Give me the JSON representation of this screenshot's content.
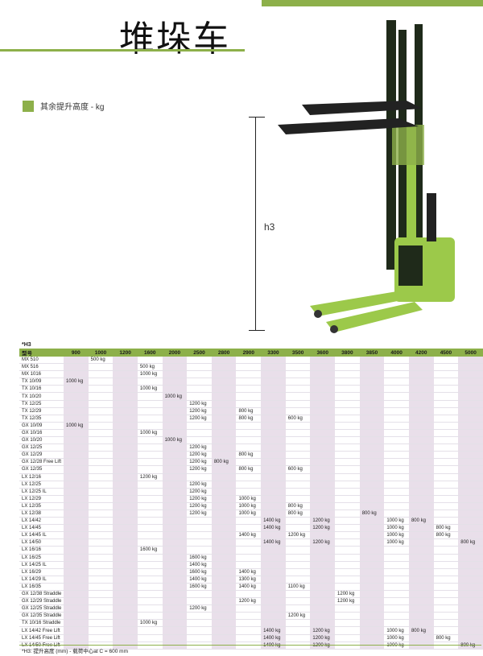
{
  "title": "堆垛车",
  "legend": "其余提升高度 - kg",
  "dimension_label": "h3",
  "colors": {
    "accent": "#8db04a",
    "shade": "#e9dfea"
  },
  "table": {
    "caption": "*H3",
    "model_header": "型号",
    "columns": [
      "900",
      "1000",
      "1200",
      "1600",
      "2000",
      "2500",
      "2800",
      "2900",
      "3300",
      "3500",
      "3600",
      "3800",
      "3850",
      "4000",
      "4200",
      "4500",
      "5000"
    ],
    "rows": [
      {
        "model": "MX 510",
        "v": {
          "1000": "500 kg"
        }
      },
      {
        "model": "MX 516",
        "v": {
          "1600": "500 kg"
        }
      },
      {
        "model": "MX 1016",
        "v": {
          "1600": "1000 kg"
        }
      },
      {
        "model": "TX 10/09",
        "v": {
          "900": "1000 kg"
        }
      },
      {
        "model": "TX 10/16",
        "v": {
          "1600": "1000 kg"
        }
      },
      {
        "model": "TX 10/20",
        "v": {
          "2000": "1000 kg"
        }
      },
      {
        "model": "TX 12/25",
        "v": {
          "2500": "1200 kg"
        }
      },
      {
        "model": "TX 12/29",
        "v": {
          "2500": "1200 kg",
          "2900": "800 kg"
        }
      },
      {
        "model": "TX 12/35",
        "v": {
          "2500": "1200 kg",
          "2900": "800 kg",
          "3500": "600 kg"
        }
      },
      {
        "model": "GX 10/09",
        "v": {
          "900": "1000 kg"
        }
      },
      {
        "model": "GX 10/16",
        "v": {
          "1600": "1000 kg"
        }
      },
      {
        "model": "GX 10/20",
        "v": {
          "2000": "1000 kg"
        }
      },
      {
        "model": "GX 12/25",
        "v": {
          "2500": "1200 kg"
        }
      },
      {
        "model": "GX 12/29",
        "v": {
          "2500": "1200 kg",
          "2900": "800 kg"
        }
      },
      {
        "model": "GX 12/28 Free Lift",
        "v": {
          "2500": "1200 kg",
          "2800": "800 kg"
        }
      },
      {
        "model": "GX 12/35",
        "v": {
          "2500": "1200 kg",
          "2900": "800 kg",
          "3500": "600 kg"
        }
      },
      {
        "model": "LX 12/16",
        "v": {
          "1600": "1200 kg"
        }
      },
      {
        "model": "LX 12/25",
        "v": {
          "2500": "1200 kg"
        }
      },
      {
        "model": "LX 12/25 IL",
        "v": {
          "2500": "1200 kg"
        }
      },
      {
        "model": "LX 12/29",
        "v": {
          "2500": "1200 kg",
          "2900": "1000 kg"
        }
      },
      {
        "model": "LX 12/35",
        "v": {
          "2500": "1200 kg",
          "2900": "1000 kg",
          "3500": "800 kg"
        }
      },
      {
        "model": "LX 12/38",
        "v": {
          "2500": "1200 kg",
          "2900": "1000 kg",
          "3500": "800 kg",
          "3850": "800 kg"
        }
      },
      {
        "model": "LX 14/42",
        "v": {
          "3300": "1400 kg",
          "3600": "1200 kg",
          "4000": "1000 kg",
          "4200": "800 kg"
        }
      },
      {
        "model": "LX 14/45",
        "v": {
          "3300": "1400 kg",
          "3600": "1200 kg",
          "4000": "1000 kg",
          "4500": "800 kg"
        }
      },
      {
        "model": "LX 14/45 IL",
        "v": {
          "2900": "1400 kg",
          "3500": "1200 kg",
          "4000": "1000 kg",
          "4500": "800 kg"
        }
      },
      {
        "model": "LX 14/50",
        "v": {
          "3300": "1400 kg",
          "3600": "1200 kg",
          "4000": "1000 kg",
          "5000": "800 kg"
        }
      },
      {
        "model": "LX 16/16",
        "v": {
          "1600": "1600 kg"
        }
      },
      {
        "model": "LX 16/25",
        "v": {
          "2500": "1600 kg"
        }
      },
      {
        "model": "LX 14/25 IL",
        "v": {
          "2500": "1400 kg"
        }
      },
      {
        "model": "LX 16/29",
        "v": {
          "2500": "1600 kg",
          "2900": "1400 kg"
        }
      },
      {
        "model": "LX 14/29 IL",
        "v": {
          "2500": "1400 kg",
          "2900": "1300 kg"
        }
      },
      {
        "model": "LX 16/35",
        "v": {
          "2500": "1600 kg",
          "2900": "1400 kg",
          "3500": "1100 kg"
        }
      },
      {
        "model": "GX 12/38 Straddle",
        "v": {
          "3800": "1200 kg"
        }
      },
      {
        "model": "GX 12/29 Straddle",
        "v": {
          "2900": "1200 kg",
          "3800": "1200 kg"
        }
      },
      {
        "model": "GX 12/25 Straddle",
        "v": {
          "2500": "1200 kg"
        }
      },
      {
        "model": "GX 12/35 Straddle",
        "v": {
          "3500": "1200 kg"
        }
      },
      {
        "model": "TX 10/16 Straddle",
        "v": {
          "1600": "1000 kg"
        }
      },
      {
        "model": "LX 14/42 Free Lift",
        "v": {
          "3300": "1400 kg",
          "3600": "1200 kg",
          "4000": "1000 kg",
          "4200": "800 kg"
        }
      },
      {
        "model": "LX 14/45 Free Lift",
        "v": {
          "3300": "1400 kg",
          "3600": "1200 kg",
          "4000": "1000 kg",
          "4500": "800 kg"
        }
      },
      {
        "model": "LX 14/50 Free Lift",
        "v": {
          "3300": "1400 kg",
          "3600": "1200 kg",
          "4000": "1000 kg",
          "5000": "800 kg"
        }
      }
    ],
    "footnote": "*H3: 提升高度 (mm) - 载荷中心at C = 600 mm"
  }
}
